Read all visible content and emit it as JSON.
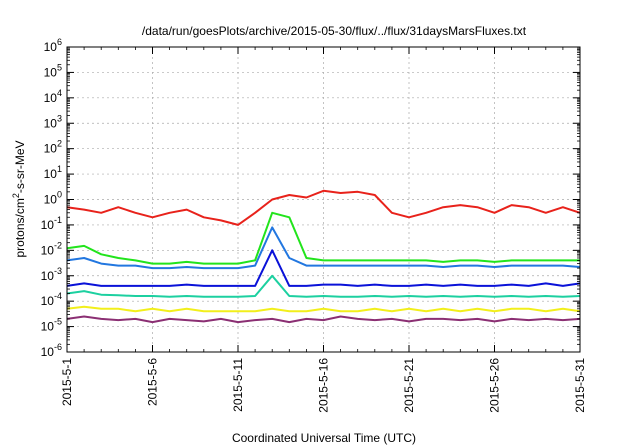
{
  "chart_data": {
    "type": "line",
    "title": "/data/run/goesPlots/archive/2015-05-30/flux/../flux/31daysMarsFluxes.txt",
    "xlabel": "Coordinated Universal Time (UTC)",
    "ylabel": {
      "prefix": "protons/cm",
      "superscript": "2",
      "suffix": "-s-sr-MeV"
    },
    "yscale": "log",
    "ylim_exponents": [
      -6,
      6
    ],
    "y_tick_labels": [
      {
        "base": "10",
        "exp": "6"
      },
      {
        "base": "10",
        "exp": "5"
      },
      {
        "base": "10",
        "exp": "4"
      },
      {
        "base": "10",
        "exp": "3"
      },
      {
        "base": "10",
        "exp": "2"
      },
      {
        "base": "10",
        "exp": "1"
      },
      {
        "base": "10",
        "exp": "0"
      },
      {
        "base": "10",
        "exp": "-1"
      },
      {
        "base": "10",
        "exp": "-2"
      },
      {
        "base": "10",
        "exp": "-3"
      },
      {
        "base": "10",
        "exp": "-4"
      },
      {
        "base": "10",
        "exp": "-5"
      },
      {
        "base": "10",
        "exp": "-6"
      }
    ],
    "xlim": [
      "2015-05-01",
      "2015-05-31"
    ],
    "x_ticks": [
      "2015-5-1",
      "2015-5-6",
      "2015-5-11",
      "2015-5-16",
      "2015-5-21",
      "2015-5-26",
      "2015-5-31"
    ],
    "grid": true,
    "series_colors": [
      "#e8221b",
      "#22e41c",
      "#2277e0",
      "#0a12d8",
      "#1cd0a0",
      "#f2ef1b",
      "#8b2f73"
    ],
    "series": [
      {
        "color": "#e8221b",
        "x": [
          "2015-05-01",
          "2015-05-02",
          "2015-05-03",
          "2015-05-04",
          "2015-05-05",
          "2015-05-06",
          "2015-05-07",
          "2015-05-08",
          "2015-05-09",
          "2015-05-10",
          "2015-05-11",
          "2015-05-12",
          "2015-05-13",
          "2015-05-14",
          "2015-05-15",
          "2015-05-16",
          "2015-05-17",
          "2015-05-18",
          "2015-05-19",
          "2015-05-20",
          "2015-05-21",
          "2015-05-22",
          "2015-05-23",
          "2015-05-24",
          "2015-05-25",
          "2015-05-26",
          "2015-05-27",
          "2015-05-28",
          "2015-05-29",
          "2015-05-30",
          "2015-05-31"
        ],
        "y": [
          0.5,
          0.4,
          0.3,
          0.5,
          0.3,
          0.2,
          0.3,
          0.4,
          0.2,
          0.15,
          0.1,
          0.3,
          1.0,
          1.5,
          1.2,
          2.2,
          1.8,
          2.0,
          1.5,
          0.3,
          0.2,
          0.3,
          0.5,
          0.6,
          0.5,
          0.3,
          0.6,
          0.5,
          0.3,
          0.5,
          0.3
        ]
      },
      {
        "color": "#22e41c",
        "x": [
          "2015-05-01",
          "2015-05-02",
          "2015-05-03",
          "2015-05-04",
          "2015-05-05",
          "2015-05-06",
          "2015-05-07",
          "2015-05-08",
          "2015-05-09",
          "2015-05-10",
          "2015-05-11",
          "2015-05-12",
          "2015-05-13",
          "2015-05-14",
          "2015-05-15",
          "2015-05-16",
          "2015-05-17",
          "2015-05-18",
          "2015-05-19",
          "2015-05-20",
          "2015-05-21",
          "2015-05-22",
          "2015-05-23",
          "2015-05-24",
          "2015-05-25",
          "2015-05-26",
          "2015-05-27",
          "2015-05-28",
          "2015-05-29",
          "2015-05-30",
          "2015-05-31"
        ],
        "y": [
          0.012,
          0.015,
          0.007,
          0.005,
          0.004,
          0.003,
          0.003,
          0.0035,
          0.003,
          0.003,
          0.003,
          0.004,
          0.3,
          0.2,
          0.005,
          0.004,
          0.004,
          0.004,
          0.004,
          0.004,
          0.004,
          0.004,
          0.0035,
          0.004,
          0.004,
          0.0035,
          0.004,
          0.004,
          0.004,
          0.004,
          0.004
        ]
      },
      {
        "color": "#2277e0",
        "x": [
          "2015-05-01",
          "2015-05-02",
          "2015-05-03",
          "2015-05-04",
          "2015-05-05",
          "2015-05-06",
          "2015-05-07",
          "2015-05-08",
          "2015-05-09",
          "2015-05-10",
          "2015-05-11",
          "2015-05-12",
          "2015-05-13",
          "2015-05-14",
          "2015-05-15",
          "2015-05-16",
          "2015-05-17",
          "2015-05-18",
          "2015-05-19",
          "2015-05-20",
          "2015-05-21",
          "2015-05-22",
          "2015-05-23",
          "2015-05-24",
          "2015-05-25",
          "2015-05-26",
          "2015-05-27",
          "2015-05-28",
          "2015-05-29",
          "2015-05-30",
          "2015-05-31"
        ],
        "y": [
          0.004,
          0.005,
          0.003,
          0.0025,
          0.0025,
          0.002,
          0.002,
          0.0022,
          0.002,
          0.002,
          0.002,
          0.0025,
          0.08,
          0.005,
          0.0025,
          0.0025,
          0.0025,
          0.0025,
          0.0025,
          0.0025,
          0.0025,
          0.0025,
          0.0022,
          0.0025,
          0.0025,
          0.0022,
          0.0025,
          0.0025,
          0.0025,
          0.0025,
          0.0022
        ]
      },
      {
        "color": "#0a12d8",
        "x": [
          "2015-05-01",
          "2015-05-02",
          "2015-05-03",
          "2015-05-04",
          "2015-05-05",
          "2015-05-06",
          "2015-05-07",
          "2015-05-08",
          "2015-05-09",
          "2015-05-10",
          "2015-05-11",
          "2015-05-12",
          "2015-05-13",
          "2015-05-14",
          "2015-05-15",
          "2015-05-16",
          "2015-05-17",
          "2015-05-18",
          "2015-05-19",
          "2015-05-20",
          "2015-05-21",
          "2015-05-22",
          "2015-05-23",
          "2015-05-24",
          "2015-05-25",
          "2015-05-26",
          "2015-05-27",
          "2015-05-28",
          "2015-05-29",
          "2015-05-30",
          "2015-05-31"
        ],
        "y": [
          0.0004,
          0.0005,
          0.0004,
          0.0004,
          0.0004,
          0.0004,
          0.0004,
          0.00045,
          0.0004,
          0.0004,
          0.0004,
          0.0004,
          0.01,
          0.0004,
          0.0004,
          0.00045,
          0.00045,
          0.0004,
          0.00045,
          0.0004,
          0.0004,
          0.00045,
          0.0004,
          0.00045,
          0.0004,
          0.0004,
          0.00045,
          0.0004,
          0.0005,
          0.0004,
          0.0005
        ]
      },
      {
        "color": "#1cd0a0",
        "x": [
          "2015-05-01",
          "2015-05-02",
          "2015-05-03",
          "2015-05-04",
          "2015-05-05",
          "2015-05-06",
          "2015-05-07",
          "2015-05-08",
          "2015-05-09",
          "2015-05-10",
          "2015-05-11",
          "2015-05-12",
          "2015-05-13",
          "2015-05-14",
          "2015-05-15",
          "2015-05-16",
          "2015-05-17",
          "2015-05-18",
          "2015-05-19",
          "2015-05-20",
          "2015-05-21",
          "2015-05-22",
          "2015-05-23",
          "2015-05-24",
          "2015-05-25",
          "2015-05-26",
          "2015-05-27",
          "2015-05-28",
          "2015-05-29",
          "2015-05-30",
          "2015-05-31"
        ],
        "y": [
          0.0002,
          0.00025,
          0.00018,
          0.00017,
          0.00016,
          0.00016,
          0.00015,
          0.00016,
          0.00015,
          0.00015,
          0.00015,
          0.00016,
          0.001,
          0.00016,
          0.00015,
          0.00016,
          0.00015,
          0.00015,
          0.00016,
          0.00015,
          0.00016,
          0.00015,
          0.00016,
          0.00015,
          0.00016,
          0.00015,
          0.00016,
          0.00015,
          0.00016,
          0.00015,
          0.00016
        ]
      },
      {
        "color": "#f2ef1b",
        "x": [
          "2015-05-01",
          "2015-05-02",
          "2015-05-03",
          "2015-05-04",
          "2015-05-05",
          "2015-05-06",
          "2015-05-07",
          "2015-05-08",
          "2015-05-09",
          "2015-05-10",
          "2015-05-11",
          "2015-05-12",
          "2015-05-13",
          "2015-05-14",
          "2015-05-15",
          "2015-05-16",
          "2015-05-17",
          "2015-05-18",
          "2015-05-19",
          "2015-05-20",
          "2015-05-21",
          "2015-05-22",
          "2015-05-23",
          "2015-05-24",
          "2015-05-25",
          "2015-05-26",
          "2015-05-27",
          "2015-05-28",
          "2015-05-29",
          "2015-05-30",
          "2015-05-31"
        ],
        "y": [
          5e-05,
          6e-05,
          5e-05,
          5e-05,
          4e-05,
          5e-05,
          4e-05,
          5e-05,
          4e-05,
          4e-05,
          4e-05,
          4e-05,
          5e-05,
          4e-05,
          4e-05,
          5e-05,
          4e-05,
          4e-05,
          5e-05,
          4e-05,
          5e-05,
          4e-05,
          5e-05,
          4e-05,
          5e-05,
          4e-05,
          5e-05,
          5e-05,
          4e-05,
          5e-05,
          4e-05
        ]
      },
      {
        "color": "#8b2f73",
        "x": [
          "2015-05-01",
          "2015-05-02",
          "2015-05-03",
          "2015-05-04",
          "2015-05-05",
          "2015-05-06",
          "2015-05-07",
          "2015-05-08",
          "2015-05-09",
          "2015-05-10",
          "2015-05-11",
          "2015-05-12",
          "2015-05-13",
          "2015-05-14",
          "2015-05-15",
          "2015-05-16",
          "2015-05-17",
          "2015-05-18",
          "2015-05-19",
          "2015-05-20",
          "2015-05-21",
          "2015-05-22",
          "2015-05-23",
          "2015-05-24",
          "2015-05-25",
          "2015-05-26",
          "2015-05-27",
          "2015-05-28",
          "2015-05-29",
          "2015-05-30",
          "2015-05-31"
        ],
        "y": [
          2e-05,
          2.5e-05,
          2e-05,
          1.8e-05,
          2e-05,
          1.5e-05,
          2e-05,
          1.8e-05,
          1.6e-05,
          2e-05,
          1.5e-05,
          1.8e-05,
          2e-05,
          1.5e-05,
          2e-05,
          1.8e-05,
          2.5e-05,
          2e-05,
          1.8e-05,
          2e-05,
          1.6e-05,
          2e-05,
          2e-05,
          1.8e-05,
          2e-05,
          1.6e-05,
          2e-05,
          1.8e-05,
          2e-05,
          1.8e-05,
          2e-05
        ]
      }
    ]
  }
}
